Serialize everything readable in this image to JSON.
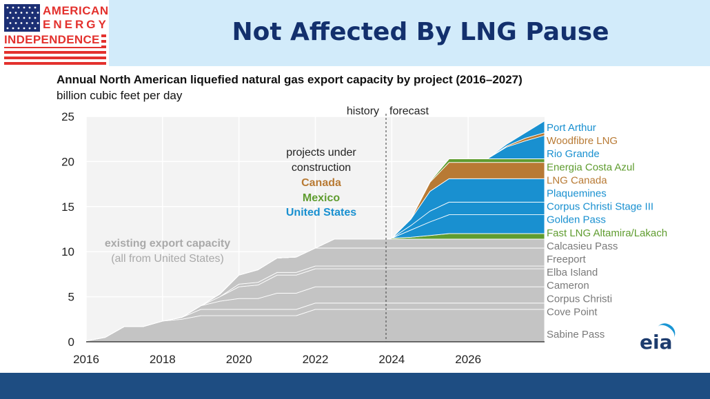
{
  "slide": {
    "title": "Not Affected By LNG Pause",
    "logo": {
      "line1": "AMERICAN",
      "line2": "ENERGY",
      "line3": "INDEPENDENCE"
    },
    "source_logo": "eia",
    "colors": {
      "header_band": "#d2ebfa",
      "title": "#13306d",
      "footer_band": "#1e4d82",
      "logo_red": "#e3312d",
      "logo_blue": "#1c2f74"
    }
  },
  "chart_data": {
    "type": "area",
    "stacked": true,
    "title": "Annual North American liquefied natural gas export capacity by project (2016–2027)",
    "ylabel": "billion cubic feet per day",
    "xlim": [
      2016,
      2028
    ],
    "ylim": [
      0,
      25
    ],
    "x_ticks": [
      2016,
      2018,
      2020,
      2022,
      2024,
      2026
    ],
    "y_ticks": [
      0,
      5,
      10,
      15,
      20,
      25
    ],
    "grid": true,
    "divider": {
      "x": 2023.85,
      "left_label": "history",
      "right_label": "forecast"
    },
    "annotations": {
      "existing_line1": "existing export capacity",
      "existing_line2": "(all from United States)",
      "construction_line1": "projects under",
      "construction_line2": "construction",
      "canada": "Canada",
      "mexico": "Mexico",
      "united_states": "United States"
    },
    "group_colors": {
      "existing": "#c4c4c4",
      "canada": "#b87a34",
      "mexico": "#5f9c2f",
      "united_states": "#1990d0"
    },
    "x": [
      2016,
      2016.5,
      2017,
      2017.5,
      2018,
      2018.5,
      2019,
      2019.5,
      2020,
      2020.5,
      2021,
      2021.5,
      2022,
      2022.5,
      2023,
      2023.8,
      2024,
      2024.5,
      2025,
      2025.5,
      2026,
      2026.5,
      2027,
      2027.5,
      2028
    ],
    "series": [
      {
        "name": "Sabine Pass",
        "group": "existing",
        "values": [
          0.1,
          0.5,
          1.7,
          1.7,
          2.3,
          2.5,
          2.9,
          2.9,
          2.9,
          2.9,
          2.9,
          2.9,
          3.6,
          3.6,
          3.6,
          3.6,
          3.6,
          3.6,
          3.6,
          3.6,
          3.6,
          3.6,
          3.6,
          3.6,
          3.6
        ]
      },
      {
        "name": "Cove Point",
        "group": "existing",
        "values": [
          0,
          0,
          0,
          0,
          0,
          0.2,
          0.7,
          0.7,
          0.7,
          0.7,
          0.7,
          0.7,
          0.7,
          0.7,
          0.7,
          0.7,
          0.7,
          0.7,
          0.7,
          0.7,
          0.7,
          0.7,
          0.7,
          0.7,
          0.7
        ]
      },
      {
        "name": "Corpus Christi",
        "group": "existing",
        "values": [
          0,
          0,
          0,
          0,
          0,
          0,
          0.4,
          0.9,
          1.2,
          1.2,
          1.8,
          1.8,
          1.8,
          1.8,
          1.8,
          1.8,
          1.8,
          1.8,
          1.8,
          1.8,
          1.8,
          1.8,
          1.8,
          1.8,
          1.8
        ]
      },
      {
        "name": "Cameron",
        "group": "existing",
        "values": [
          0,
          0,
          0,
          0,
          0,
          0,
          0,
          0.5,
          1.3,
          1.5,
          2.0,
          2.0,
          2.0,
          2.0,
          2.0,
          2.0,
          2.0,
          2.0,
          2.0,
          2.0,
          2.0,
          2.0,
          2.0,
          2.0,
          2.0
        ]
      },
      {
        "name": "Elba Island",
        "group": "existing",
        "values": [
          0,
          0,
          0,
          0,
          0,
          0,
          0,
          0,
          0.3,
          0.3,
          0.3,
          0.3,
          0.3,
          0.3,
          0.3,
          0.3,
          0.3,
          0.3,
          0.3,
          0.3,
          0.3,
          0.3,
          0.3,
          0.3,
          0.3
        ]
      },
      {
        "name": "Freeport",
        "group": "existing",
        "values": [
          0,
          0,
          0,
          0,
          0,
          0,
          0,
          0.3,
          1.0,
          1.4,
          1.6,
          1.7,
          2.0,
          2.0,
          2.0,
          2.0,
          2.0,
          2.0,
          2.0,
          2.0,
          2.0,
          2.0,
          2.0,
          2.0,
          2.0
        ]
      },
      {
        "name": "Calcasieu Pass",
        "group": "existing",
        "values": [
          0,
          0,
          0,
          0,
          0,
          0,
          0,
          0,
          0,
          0,
          0,
          0,
          0,
          1.0,
          1.0,
          1.0,
          1.0,
          1.0,
          1.0,
          1.0,
          1.0,
          1.0,
          1.0,
          1.0,
          1.0
        ]
      },
      {
        "name": "Fast LNG Altamira/Lakach",
        "group": "mexico",
        "values": [
          0,
          0,
          0,
          0,
          0,
          0,
          0,
          0,
          0,
          0,
          0,
          0,
          0,
          0,
          0,
          0,
          0.1,
          0.2,
          0.4,
          0.6,
          0.6,
          0.6,
          0.6,
          0.6,
          0.6
        ]
      },
      {
        "name": "Golden Pass",
        "group": "united_states",
        "values": [
          0,
          0,
          0,
          0,
          0,
          0,
          0,
          0,
          0,
          0,
          0,
          0,
          0,
          0,
          0,
          0,
          0,
          0.8,
          1.5,
          2.1,
          2.1,
          2.1,
          2.1,
          2.1,
          2.1
        ]
      },
      {
        "name": "Corpus Christi Stage III",
        "group": "united_states",
        "values": [
          0,
          0,
          0,
          0,
          0,
          0,
          0,
          0,
          0,
          0,
          0,
          0,
          0,
          0,
          0,
          0,
          0,
          0.5,
          1.2,
          1.4,
          1.4,
          1.4,
          1.4,
          1.4,
          1.4
        ]
      },
      {
        "name": "Plaquemines",
        "group": "united_states",
        "values": [
          0,
          0,
          0,
          0,
          0,
          0,
          0,
          0,
          0,
          0,
          0,
          0,
          0,
          0,
          0,
          0,
          0,
          0.7,
          2.2,
          2.6,
          2.6,
          2.6,
          2.6,
          2.6,
          2.6
        ]
      },
      {
        "name": "LNG Canada",
        "group": "canada",
        "values": [
          0,
          0,
          0,
          0,
          0,
          0,
          0,
          0,
          0,
          0,
          0,
          0,
          0,
          0,
          0,
          0,
          0,
          0,
          1.0,
          1.8,
          1.8,
          1.8,
          1.8,
          1.8,
          1.8
        ]
      },
      {
        "name": "Energia Costa Azul",
        "group": "mexico",
        "values": [
          0,
          0,
          0,
          0,
          0,
          0,
          0,
          0,
          0,
          0,
          0,
          0,
          0,
          0,
          0,
          0,
          0,
          0,
          0.1,
          0.4,
          0.4,
          0.4,
          0.4,
          0.4,
          0.4
        ]
      },
      {
        "name": "Rio Grande",
        "group": "united_states",
        "values": [
          0,
          0,
          0,
          0,
          0,
          0,
          0,
          0,
          0,
          0,
          0,
          0,
          0,
          0,
          0,
          0,
          0,
          0,
          0,
          0,
          0,
          0,
          1.3,
          2.0,
          2.6
        ]
      },
      {
        "name": "Woodfibre LNG",
        "group": "canada",
        "values": [
          0,
          0,
          0,
          0,
          0,
          0,
          0,
          0,
          0,
          0,
          0,
          0,
          0,
          0,
          0,
          0,
          0,
          0,
          0,
          0,
          0,
          0,
          0.1,
          0.3,
          0.3
        ]
      },
      {
        "name": "Port Arthur",
        "group": "united_states",
        "values": [
          0,
          0,
          0,
          0,
          0,
          0,
          0,
          0,
          0,
          0,
          0,
          0,
          0,
          0,
          0,
          0,
          0,
          0,
          0,
          0,
          0,
          0,
          0.2,
          0.6,
          1.3
        ]
      }
    ]
  }
}
